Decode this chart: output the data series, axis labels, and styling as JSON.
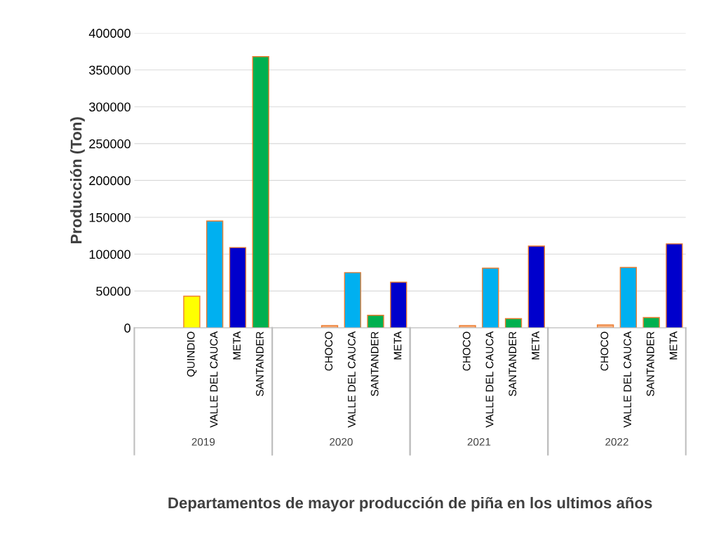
{
  "chart_data": {
    "type": "bar",
    "xlabel": "Departamentos de mayor producción de piña en los ultimos años",
    "ylabel": "Producción (Ton)",
    "categories": [
      null,
      null,
      "QUINDIO",
      "VALLE DEL CAUCA",
      "META",
      "SANTANDER",
      null,
      null,
      "CHOCO",
      "VALLE DEL CAUCA",
      "SANTANDER",
      "META",
      null,
      null,
      "CHOCO",
      "VALLE DEL CAUCA",
      "SANTANDER",
      "META",
      null,
      null,
      "CHOCO",
      "VALLE DEL CAUCA",
      "SANTANDER",
      "META"
    ],
    "values": [
      null,
      null,
      43000,
      145000,
      109000,
      368000,
      null,
      null,
      3000,
      75000,
      17000,
      62000,
      null,
      null,
      3000,
      81000,
      12500,
      111000,
      null,
      null,
      4000,
      82000,
      14000,
      114000
    ],
    "colors": [
      "#ffffff",
      "#ffffff",
      "#ffff00",
      "#00b0f0",
      "#0000cc",
      "#00b050",
      "#ffffff",
      "#ffffff",
      "#f4b183",
      "#00b0f0",
      "#00b050",
      "#0000cc",
      "#ffffff",
      "#ffffff",
      "#f4b183",
      "#00b0f0",
      "#00b050",
      "#0000cc",
      "#ffffff",
      "#ffffff",
      "#f4b183",
      "#00b0f0",
      "#00b050",
      "#0000cc"
    ],
    "annotations": [
      "2019",
      "2020",
      "2021",
      "2022"
    ],
    "ylim": [
      0,
      400000
    ],
    "yticks": [
      0,
      50000,
      100000,
      150000,
      200000,
      250000,
      300000,
      350000,
      400000
    ],
    "grid": "y"
  }
}
